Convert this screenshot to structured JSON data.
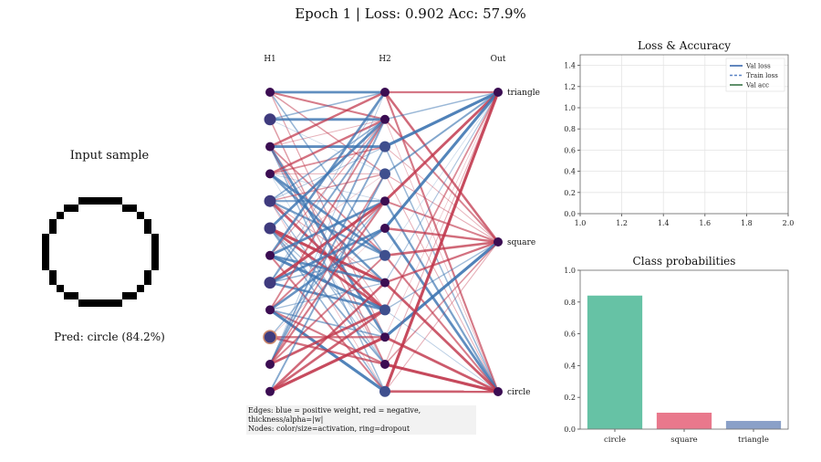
{
  "header": {
    "title": "Epoch 1  |  Loss: 0.902  Acc: 57.9%"
  },
  "input_panel": {
    "title": "Input sample",
    "prediction": "Pred: circle (84.2%)",
    "pixel_rows": [
      "000000000000000000",
      "000000000000000000",
      "000000111111000000",
      "000011000000110000",
      "000100000000001000",
      "001000000000000100",
      "001000000000000100",
      "010000000000000010",
      "010000000000000010",
      "010000000000000010",
      "010000000000000010",
      "010000000000000010",
      "001000000000000100",
      "001000000000000100",
      "000100000000001000",
      "000011000000110000",
      "000000111111000000",
      "000000000000000000"
    ]
  },
  "network": {
    "layer_labels": [
      "H1",
      "H2",
      "Out"
    ],
    "output_labels": [
      "triangle",
      "square",
      "circle"
    ],
    "caption_line1": "Edges: blue = positive weight, red = negative, thickness/alpha=|w|",
    "caption_line2": "Nodes: color/size=activation, ring=dropout",
    "colors": {
      "positive": "#3a73b0",
      "negative": "#c0354a",
      "node_low": "#3b0d52",
      "node_high": "#4a5ea8"
    }
  },
  "chart_data": [
    {
      "type": "line",
      "title": "Loss & Accuracy",
      "xlim": [
        1.0,
        2.0
      ],
      "ylim": [
        0.0,
        1.5
      ],
      "xticks": [
        "1.0",
        "1.2",
        "1.4",
        "1.6",
        "1.8",
        "2.0"
      ],
      "yticks": [
        "0.0",
        "0.2",
        "0.4",
        "0.6",
        "0.8",
        "1.0",
        "1.2",
        "1.4"
      ],
      "grid": true,
      "legend_position": "top-right",
      "series": [
        {
          "name": "Val loss",
          "color": "#2f5fa8",
          "style": "solid",
          "values": []
        },
        {
          "name": "Train loss",
          "color": "#5b84c4",
          "style": "dashed",
          "values": []
        },
        {
          "name": "Val acc",
          "color": "#2b6b3a",
          "style": "solid",
          "values": []
        }
      ]
    },
    {
      "type": "bar",
      "title": "Class probabilities",
      "categories": [
        "circle",
        "square",
        "triangle"
      ],
      "values": [
        0.842,
        0.105,
        0.053
      ],
      "colors": [
        "#66c2a5",
        "#e9788c",
        "#8aa0c8"
      ],
      "ylim": [
        0.0,
        1.0
      ],
      "yticks": [
        "0.0",
        "0.2",
        "0.4",
        "0.6",
        "0.8",
        "1.0"
      ]
    }
  ]
}
